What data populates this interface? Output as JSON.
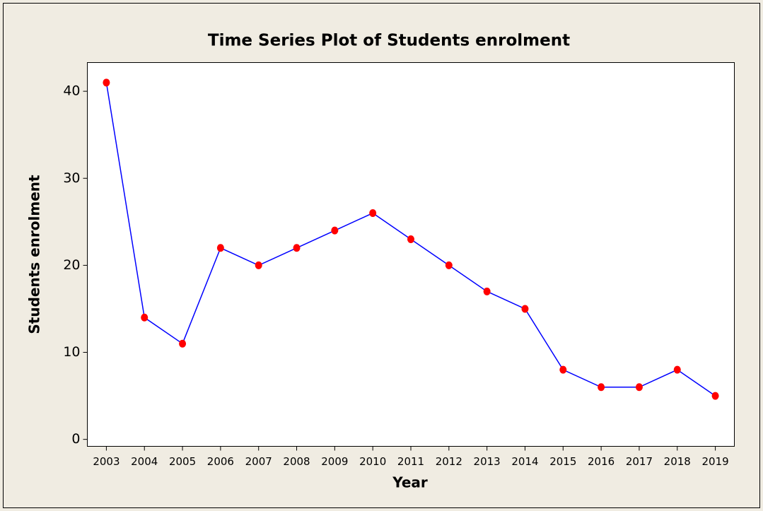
{
  "chart_data": {
    "type": "line",
    "title": "Time Series Plot of Students enrolment",
    "x_label": "Year",
    "y_label": "Students enrolment",
    "categories": [
      "2003",
      "2004",
      "2005",
      "2006",
      "2007",
      "2008",
      "2009",
      "2010",
      "2011",
      "2012",
      "2013",
      "2014",
      "2015",
      "2016",
      "2017",
      "2018",
      "2019"
    ],
    "series": [
      {
        "name": "Students enrolment",
        "color": "#0000ff",
        "marker_color": "#ff0000",
        "values": [
          41,
          14,
          11,
          22,
          20,
          22,
          24,
          26,
          23,
          20,
          17,
          15,
          8,
          6,
          6,
          8,
          5
        ]
      }
    ],
    "ylim": [
      -0.8,
      43.3
    ],
    "yticks": [
      0,
      10,
      20,
      30,
      40
    ],
    "grid": false
  }
}
